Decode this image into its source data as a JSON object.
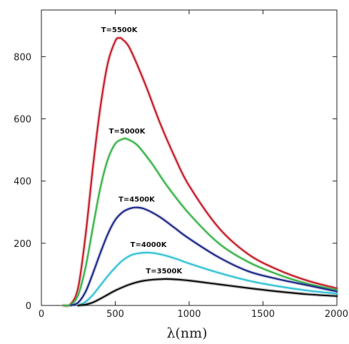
{
  "chart_data": {
    "type": "line",
    "title": "",
    "xlabel": "λ(nm)",
    "ylabel": "",
    "xlim": [
      0,
      2000
    ],
    "ylim": [
      0,
      950
    ],
    "x_ticks": [
      0,
      500,
      1000,
      1500,
      2000
    ],
    "x_tick_labels": [
      "0",
      "500",
      "1000",
      "1500",
      "2000"
    ],
    "y_ticks": [
      0,
      200,
      400,
      600,
      800
    ],
    "y_tick_labels": [
      "0",
      "200",
      "400",
      "600",
      "800"
    ],
    "grid": false,
    "legend": "none",
    "series": [
      {
        "name": "T=5500K",
        "color": "#c41e2a",
        "peak_x": 527,
        "peak_y": 860,
        "points": [
          [
            150,
            0
          ],
          [
            200,
            5
          ],
          [
            250,
            60
          ],
          [
            300,
            230
          ],
          [
            350,
            450
          ],
          [
            400,
            640
          ],
          [
            450,
            780
          ],
          [
            500,
            850
          ],
          [
            527,
            860
          ],
          [
            550,
            855
          ],
          [
            600,
            825
          ],
          [
            700,
            715
          ],
          [
            800,
            590
          ],
          [
            900,
            480
          ],
          [
            1000,
            385
          ],
          [
            1200,
            250
          ],
          [
            1400,
            165
          ],
          [
            1600,
            115
          ],
          [
            1800,
            80
          ],
          [
            2000,
            55
          ]
        ]
      },
      {
        "name": "T=5000K",
        "color": "#3cb44b",
        "peak_x": 580,
        "peak_y": 535,
        "points": [
          [
            150,
            0
          ],
          [
            200,
            3
          ],
          [
            250,
            35
          ],
          [
            300,
            125
          ],
          [
            350,
            255
          ],
          [
            400,
            380
          ],
          [
            450,
            470
          ],
          [
            500,
            520
          ],
          [
            550,
            535
          ],
          [
            580,
            535
          ],
          [
            650,
            515
          ],
          [
            750,
            455
          ],
          [
            850,
            385
          ],
          [
            1000,
            295
          ],
          [
            1200,
            200
          ],
          [
            1400,
            140
          ],
          [
            1600,
            100
          ],
          [
            1800,
            70
          ],
          [
            2000,
            50
          ]
        ]
      },
      {
        "name": "T=4500K",
        "color": "#1f2a8a",
        "peak_x": 645,
        "peak_y": 315,
        "points": [
          [
            200,
            0
          ],
          [
            250,
            10
          ],
          [
            300,
            45
          ],
          [
            350,
            105
          ],
          [
            400,
            170
          ],
          [
            450,
            230
          ],
          [
            500,
            275
          ],
          [
            550,
            300
          ],
          [
            600,
            312
          ],
          [
            645,
            315
          ],
          [
            700,
            310
          ],
          [
            800,
            285
          ],
          [
            900,
            250
          ],
          [
            1000,
            215
          ],
          [
            1200,
            155
          ],
          [
            1400,
            110
          ],
          [
            1600,
            85
          ],
          [
            1800,
            65
          ],
          [
            2000,
            45
          ]
        ]
      },
      {
        "name": "T=4000K",
        "color": "#36c3d6",
        "peak_x": 725,
        "peak_y": 170,
        "points": [
          [
            250,
            0
          ],
          [
            300,
            12
          ],
          [
            350,
            35
          ],
          [
            400,
            65
          ],
          [
            450,
            95
          ],
          [
            500,
            122
          ],
          [
            550,
            145
          ],
          [
            600,
            160
          ],
          [
            650,
            167
          ],
          [
            725,
            170
          ],
          [
            800,
            165
          ],
          [
            900,
            152
          ],
          [
            1000,
            135
          ],
          [
            1200,
            105
          ],
          [
            1400,
            80
          ],
          [
            1600,
            62
          ],
          [
            1800,
            48
          ],
          [
            2000,
            38
          ]
        ]
      },
      {
        "name": "T=3500K",
        "color": "#111111",
        "peak_x": 830,
        "peak_y": 85,
        "points": [
          [
            250,
            0
          ],
          [
            300,
            3
          ],
          [
            350,
            10
          ],
          [
            400,
            22
          ],
          [
            450,
            35
          ],
          [
            500,
            48
          ],
          [
            600,
            68
          ],
          [
            700,
            80
          ],
          [
            830,
            85
          ],
          [
            900,
            84
          ],
          [
            1000,
            80
          ],
          [
            1200,
            68
          ],
          [
            1400,
            56
          ],
          [
            1600,
            45
          ],
          [
            1800,
            36
          ],
          [
            2000,
            30
          ]
        ]
      }
    ]
  }
}
